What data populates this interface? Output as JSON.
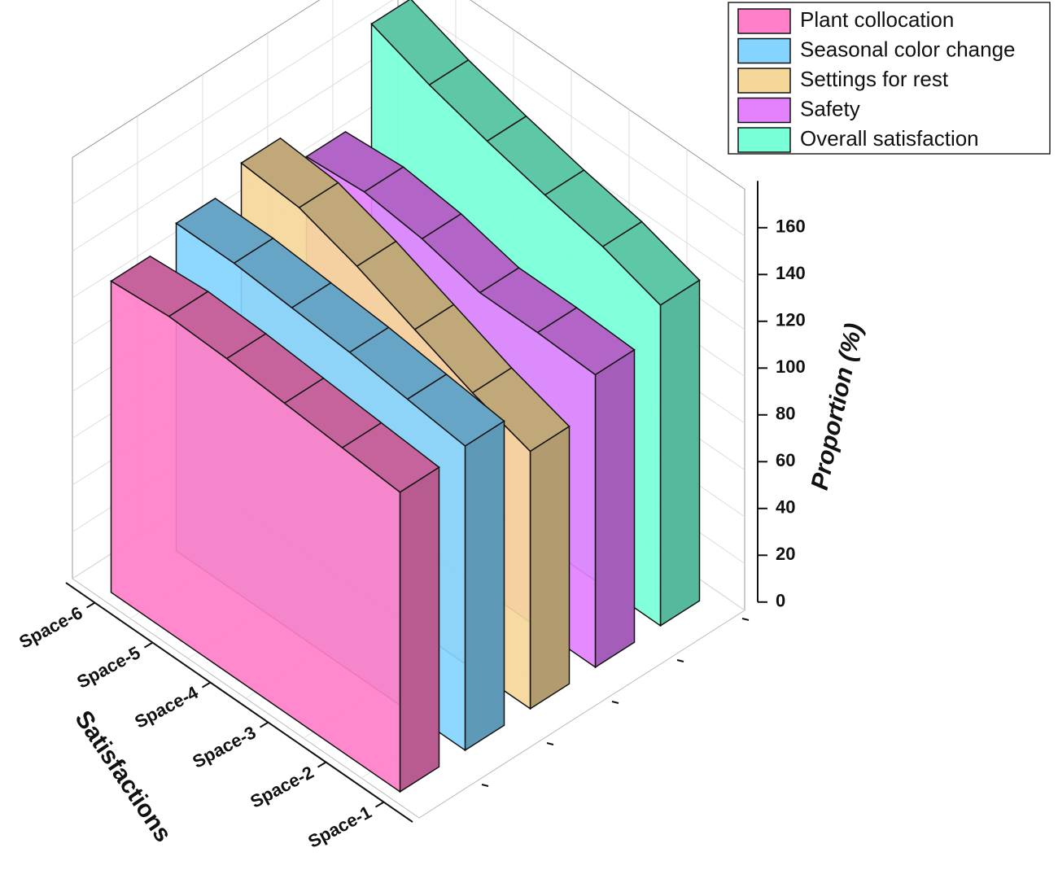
{
  "chart_data": {
    "type": "wall",
    "x_label": "Satisfactions",
    "y_label": "Proportion (%)",
    "categories": [
      "Space-1",
      "Space-2",
      "Space-3",
      "Space-4",
      "Space-5",
      "Space-6"
    ],
    "series": [
      {
        "name": "Plant collocation",
        "color": "#ff7fc8",
        "values": [
          128,
          130,
          132,
          134,
          135,
          133
        ]
      },
      {
        "name": "Seasonal color change",
        "color": "#84d4ff",
        "values": [
          130,
          133,
          136,
          138,
          140,
          140
        ]
      },
      {
        "name": "Settings for rest",
        "color": "#f6d79a",
        "values": [
          110,
          118,
          128,
          138,
          146,
          148
        ]
      },
      {
        "name": "Safety",
        "color": "#e481ff",
        "values": [
          125,
          126,
          126,
          132,
          135,
          133
        ]
      },
      {
        "name": "Overall satisfaction",
        "color": "#77ffd8",
        "values": [
          137,
          145,
          150,
          156,
          163,
          172
        ]
      }
    ],
    "ylim": [
      0,
      180
    ],
    "yticks": [
      0,
      20,
      40,
      60,
      80,
      100,
      120,
      140,
      160
    ],
    "grid": true
  }
}
